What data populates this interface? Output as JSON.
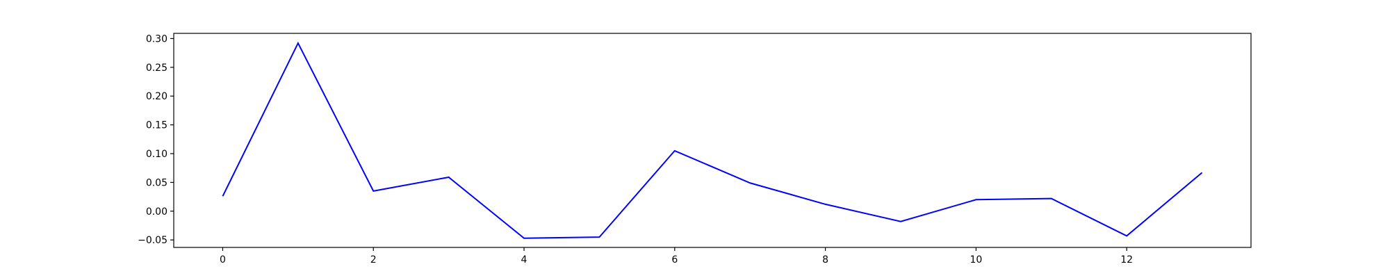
{
  "chart_data": {
    "type": "line",
    "title": "",
    "xlabel": "",
    "ylabel": "",
    "x": [
      0,
      1,
      2,
      3,
      4,
      5,
      6,
      7,
      8,
      9,
      10,
      11,
      12,
      13
    ],
    "series": [
      {
        "color": "#0000ff",
        "values": [
          0.026,
          0.292,
          0.035,
          0.059,
          -0.047,
          -0.045,
          0.105,
          0.049,
          0.012,
          -0.018,
          0.02,
          0.022,
          -0.043,
          0.067
        ]
      }
    ],
    "xlim": [
      -0.65,
      13.65
    ],
    "ylim": [
      -0.063,
      0.309
    ],
    "xticks": [
      0,
      2,
      4,
      6,
      8,
      10,
      12
    ],
    "xtick_labels": [
      "0",
      "2",
      "4",
      "6",
      "8",
      "10",
      "12"
    ],
    "yticks": [
      -0.05,
      0.0,
      0.05,
      0.1,
      0.15,
      0.2,
      0.25,
      0.3
    ],
    "ytick_labels": [
      "−0.05",
      "0.00",
      "0.05",
      "0.10",
      "0.15",
      "0.20",
      "0.25",
      "0.30"
    ],
    "grid": false,
    "legend": "none"
  }
}
